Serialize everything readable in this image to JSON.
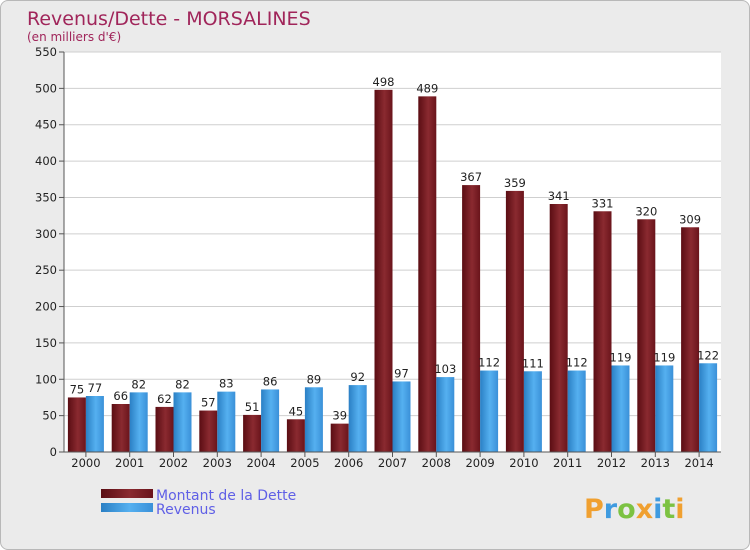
{
  "chart_data": {
    "type": "bar",
    "title": "Revenus/Dette - MORSALINES",
    "subtitle": "(en milliers d'€)",
    "categories": [
      "2000",
      "2001",
      "2002",
      "2003",
      "2004",
      "2005",
      "2006",
      "2007",
      "2008",
      "2009",
      "2010",
      "2011",
      "2012",
      "2013",
      "2014"
    ],
    "series": [
      {
        "name": "Montant de la Dette",
        "color": "#7a1b22",
        "values": [
          75,
          66,
          62,
          57,
          51,
          45,
          39,
          498,
          489,
          367,
          359,
          341,
          331,
          320,
          309
        ]
      },
      {
        "name": "Revenus",
        "color": "#3f9be0",
        "values": [
          77,
          82,
          82,
          83,
          86,
          89,
          92,
          97,
          103,
          112,
          111,
          112,
          119,
          119,
          122
        ]
      }
    ],
    "ylim": [
      0,
      550
    ],
    "yticks": [
      0,
      50,
      100,
      150,
      200,
      250,
      300,
      350,
      400,
      450,
      500,
      550
    ],
    "grid": true,
    "legend": "bottom-left"
  },
  "brand": {
    "text": "Proxiti",
    "colors": [
      "#f0a030",
      "#3f9be0",
      "#7cc242",
      "#f0a030",
      "#3f9be0",
      "#7cc242",
      "#f0a030"
    ]
  }
}
